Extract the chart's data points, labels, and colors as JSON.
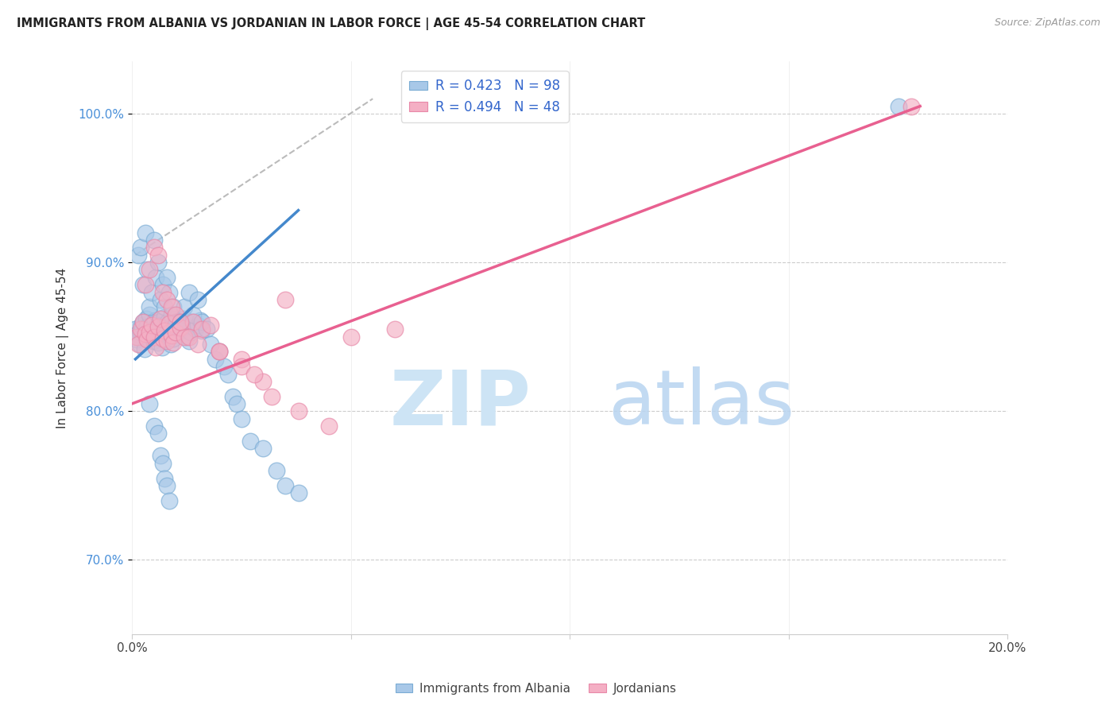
{
  "title": "IMMIGRANTS FROM ALBANIA VS JORDANIAN IN LABOR FORCE | AGE 45-54 CORRELATION CHART",
  "source": "Source: ZipAtlas.com",
  "ylabel": "In Labor Force | Age 45-54",
  "albania_color": "#a8c8e8",
  "albania_edge_color": "#7aacd4",
  "jordan_color": "#f4afc4",
  "jordan_edge_color": "#e888a8",
  "albania_line_color": "#4488cc",
  "jordan_line_color": "#e86090",
  "dash_color": "#aaaaaa",
  "title_color": "#222222",
  "source_color": "#999999",
  "ytick_color": "#4a90d9",
  "grid_color": "#cccccc",
  "watermark_zip_color": "#cde4f5",
  "watermark_atlas_color": "#b8d4f0",
  "xlim": [
    0.0,
    20.0
  ],
  "ylim": [
    65.0,
    103.5
  ],
  "yticks": [
    70.0,
    80.0,
    90.0,
    100.0
  ],
  "ytick_labels": [
    "70.0%",
    "80.0%",
    "90.0%",
    "100.0%"
  ],
  "xtick_left_label": "0.0%",
  "xtick_right_label": "20.0%",
  "legend_r_albania": "R = 0.423",
  "legend_n_albania": "N = 98",
  "legend_r_jordan": "R = 0.494",
  "legend_n_jordan": "N = 48",
  "legend_color": "#3366cc",
  "bottom_legend_albania": "Immigrants from Albania",
  "bottom_legend_jordan": "Jordanians",
  "albania_x": [
    0.08,
    0.1,
    0.12,
    0.15,
    0.18,
    0.2,
    0.22,
    0.25,
    0.28,
    0.3,
    0.32,
    0.35,
    0.38,
    0.4,
    0.42,
    0.45,
    0.48,
    0.5,
    0.52,
    0.55,
    0.58,
    0.6,
    0.62,
    0.65,
    0.68,
    0.7,
    0.72,
    0.75,
    0.78,
    0.8,
    0.82,
    0.85,
    0.88,
    0.9,
    0.92,
    0.95,
    0.98,
    1.0,
    1.05,
    1.1,
    1.15,
    1.2,
    1.25,
    1.3,
    1.35,
    1.4,
    1.45,
    1.5,
    1.55,
    1.6,
    0.15,
    0.2,
    0.25,
    0.3,
    0.35,
    0.4,
    0.45,
    0.5,
    0.55,
    0.6,
    0.65,
    0.7,
    0.75,
    0.8,
    0.85,
    0.9,
    0.95,
    1.0,
    1.05,
    1.1,
    1.2,
    1.3,
    1.4,
    1.5,
    1.6,
    1.7,
    1.8,
    1.9,
    2.0,
    2.1,
    2.2,
    2.3,
    2.4,
    2.5,
    2.7,
    3.0,
    3.3,
    3.5,
    3.8,
    0.4,
    0.5,
    0.6,
    0.65,
    0.7,
    0.75,
    0.8,
    0.85,
    17.5
  ],
  "albania_y": [
    85.5,
    84.8,
    85.2,
    85.0,
    84.5,
    85.3,
    85.8,
    86.0,
    84.2,
    85.5,
    86.2,
    85.7,
    84.9,
    86.5,
    85.1,
    85.4,
    84.7,
    85.9,
    86.1,
    85.6,
    85.3,
    84.6,
    86.0,
    85.8,
    84.3,
    85.2,
    85.7,
    86.3,
    84.8,
    85.5,
    86.0,
    85.1,
    84.5,
    85.7,
    86.2,
    84.9,
    85.3,
    85.6,
    86.0,
    85.4,
    85.8,
    86.2,
    85.0,
    84.7,
    85.3,
    86.0,
    85.5,
    85.8,
    86.1,
    85.4,
    90.5,
    91.0,
    88.5,
    92.0,
    89.5,
    87.0,
    88.0,
    91.5,
    89.0,
    90.0,
    87.5,
    88.5,
    87.0,
    89.0,
    88.0,
    86.5,
    87.0,
    86.0,
    85.5,
    86.0,
    87.0,
    88.0,
    86.5,
    87.5,
    86.0,
    85.5,
    84.5,
    83.5,
    84.0,
    83.0,
    82.5,
    81.0,
    80.5,
    79.5,
    78.0,
    77.5,
    76.0,
    75.0,
    74.5,
    80.5,
    79.0,
    78.5,
    77.0,
    76.5,
    75.5,
    75.0,
    74.0,
    100.5
  ],
  "jordan_x": [
    0.1,
    0.15,
    0.2,
    0.25,
    0.3,
    0.35,
    0.4,
    0.45,
    0.5,
    0.55,
    0.6,
    0.65,
    0.7,
    0.75,
    0.8,
    0.85,
    0.9,
    0.95,
    1.0,
    1.1,
    1.2,
    1.4,
    1.6,
    1.8,
    2.0,
    2.5,
    3.0,
    3.5,
    0.3,
    0.4,
    0.5,
    0.6,
    0.7,
    0.8,
    0.9,
    1.0,
    1.1,
    1.3,
    1.5,
    2.0,
    2.5,
    2.8,
    3.2,
    3.8,
    5.0,
    6.0,
    4.5,
    17.8
  ],
  "jordan_y": [
    85.0,
    84.5,
    85.5,
    86.0,
    85.2,
    84.8,
    85.3,
    85.8,
    85.0,
    84.3,
    85.7,
    86.2,
    84.9,
    85.4,
    84.7,
    85.9,
    85.1,
    84.6,
    85.3,
    85.6,
    85.0,
    86.0,
    85.5,
    85.8,
    84.0,
    83.5,
    82.0,
    87.5,
    88.5,
    89.5,
    91.0,
    90.5,
    88.0,
    87.5,
    87.0,
    86.5,
    86.0,
    85.0,
    84.5,
    84.0,
    83.0,
    82.5,
    81.0,
    80.0,
    85.0,
    85.5,
    79.0,
    100.5
  ],
  "alb_line_x0": 0.08,
  "alb_line_x1": 3.8,
  "alb_line_y0": 83.5,
  "alb_line_y1": 93.5,
  "jor_line_x0": 0.0,
  "jor_line_x1": 18.0,
  "jor_line_y0": 80.5,
  "jor_line_y1": 100.5,
  "dash_x0": 0.08,
  "dash_x1": 5.5,
  "dash_y0": 90.5,
  "dash_y1": 101.0
}
